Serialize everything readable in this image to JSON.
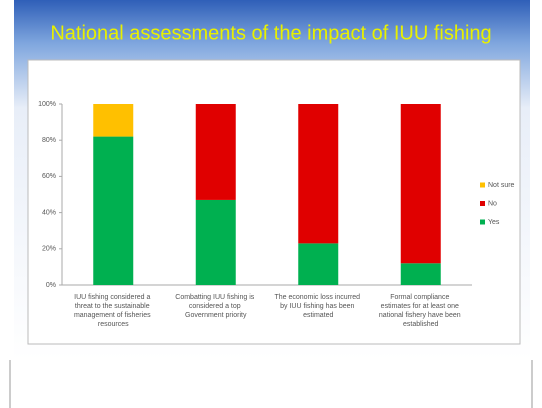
{
  "chart_data": {
    "type": "stacked_bar",
    "title": "National assessments of the impact of IUU fishing",
    "categories": [
      "IUU fishing considered a threat to the sustainable management of fisheries resources",
      "Combatting IUU fishing is considered a top Government priority",
      "The economic loss incurred by IUU fishing has been estimated",
      "Formal compliance estimates for at least one national fishery have been established"
    ],
    "series": [
      {
        "name": "Yes",
        "color": "#00b050",
        "values": [
          82,
          47,
          23,
          12
        ]
      },
      {
        "name": "No",
        "color": "#e00000",
        "values": [
          0,
          53,
          77,
          88
        ]
      },
      {
        "name": "Not sure",
        "color": "#ffc000",
        "values": [
          18,
          0,
          0,
          0
        ]
      }
    ],
    "ylim": [
      0,
      100
    ],
    "yticks": [
      {
        "value": 0,
        "label": "0%"
      },
      {
        "value": 20,
        "label": "20%"
      },
      {
        "value": 40,
        "label": "40%"
      },
      {
        "value": 60,
        "label": "60%"
      },
      {
        "value": 80,
        "label": "80%"
      },
      {
        "value": 100,
        "label": "100%"
      }
    ],
    "legend": "right"
  }
}
